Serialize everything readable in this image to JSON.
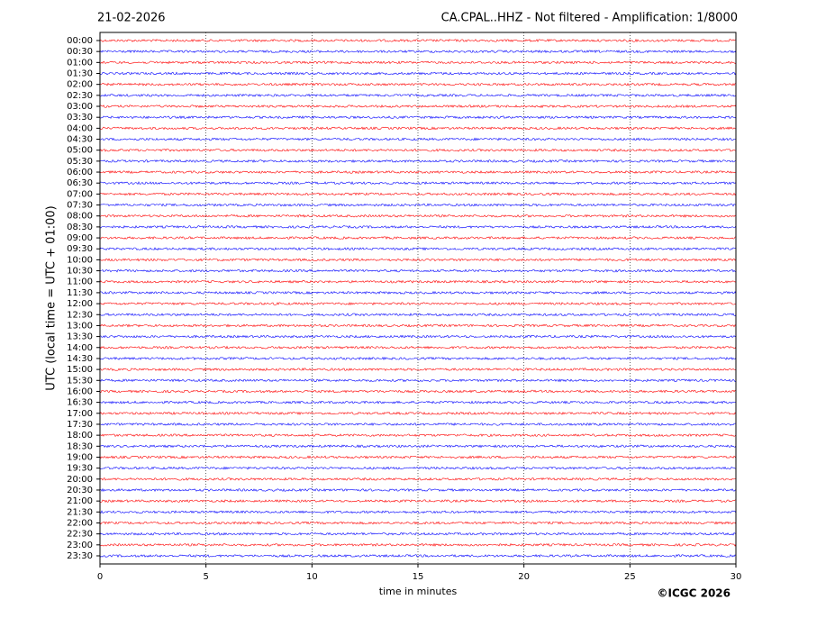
{
  "chart_data": {
    "type": "helicorder",
    "title_left": "21-02-2026",
    "title": "CA.CPAL..HHZ - Not filtered - Amplification: 1/8000",
    "xlabel": "time in minutes",
    "ylabel": "UTC (local time = UTC + 01:00)",
    "copyright": "©ICGC 2026",
    "xlim": [
      0,
      30
    ],
    "xticks": [
      0,
      5,
      10,
      15,
      20,
      25,
      30
    ],
    "grid": true,
    "colors": [
      "#ff0000",
      "#0000ff"
    ],
    "categories": [
      "00:00",
      "00:30",
      "01:00",
      "01:30",
      "02:00",
      "02:30",
      "03:00",
      "03:30",
      "04:00",
      "04:30",
      "05:00",
      "05:30",
      "06:00",
      "06:30",
      "07:00",
      "07:30",
      "08:00",
      "08:30",
      "09:00",
      "09:30",
      "10:00",
      "10:30",
      "11:00",
      "11:30",
      "12:00",
      "12:30",
      "13:00",
      "13:30",
      "14:00",
      "14:30",
      "15:00",
      "15:30",
      "16:00",
      "16:30",
      "17:00",
      "17:30",
      "18:00",
      "18:30",
      "19:00",
      "19:30",
      "20:00",
      "20:30",
      "21:00",
      "21:30",
      "22:00",
      "22:30",
      "23:00",
      "23:30"
    ]
  }
}
